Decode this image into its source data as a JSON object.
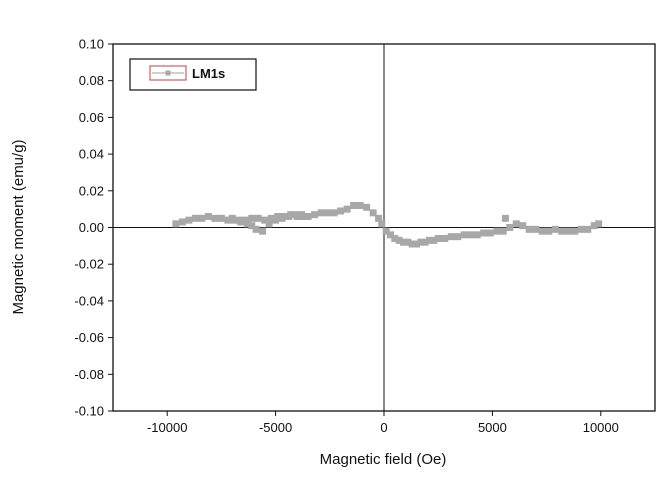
{
  "chart_data": {
    "type": "scatter",
    "title": "",
    "xlabel": "Magnetic field (Oe)",
    "ylabel": "Magnetic moment (emu/g)",
    "xlim": [
      -12500,
      12500
    ],
    "ylim": [
      -0.1,
      0.1
    ],
    "x_ticks": [
      -10000,
      -5000,
      0,
      5000,
      10000
    ],
    "x_tick_labels": [
      "-10000",
      "-5000",
      "0",
      "5000",
      "10000"
    ],
    "y_ticks": [
      -0.1,
      -0.08,
      -0.06,
      -0.04,
      -0.02,
      0.0,
      0.02,
      0.04,
      0.06,
      0.08,
      0.1
    ],
    "y_tick_labels": [
      "-0.10",
      "-0.08",
      "-0.06",
      "-0.04",
      "-0.02",
      "0.00",
      "0.02",
      "0.04",
      "0.06",
      "0.08",
      "0.10"
    ],
    "grid": false,
    "zero_lines": true,
    "legend_position": "top-left",
    "series": [
      {
        "name": "LM1s",
        "color": "#a8a8a8",
        "marker": "square",
        "x": [
          -9600,
          -9300,
          -9000,
          -8700,
          -8400,
          -8100,
          -7800,
          -7500,
          -7200,
          -6900,
          -6600,
          -6300,
          -6100,
          -5900,
          -5600,
          -5300,
          -5000,
          -4700,
          -4400,
          -4100,
          -3800,
          -3500,
          -3200,
          -2900,
          -2600,
          -2300,
          -2000,
          -1700,
          -1400,
          -1100,
          -800,
          -500,
          -250,
          -100,
          100,
          300,
          500,
          700,
          900,
          1100,
          1300,
          1500,
          1700,
          1900,
          2100,
          2300,
          2500,
          2800,
          3100,
          3400,
          3700,
          4000,
          4300,
          4600,
          4900,
          5200,
          5500,
          5600,
          5800,
          6100,
          6400,
          6700,
          7000,
          7300,
          7600,
          7900,
          8200,
          8500,
          8800,
          9100,
          9400,
          9700,
          9900,
          -7000,
          -6700,
          -6400,
          -6100,
          -5800,
          -5500,
          -5200,
          -4900,
          -4600,
          -4300,
          -4000,
          -3700
        ],
        "y": [
          0.002,
          0.003,
          0.004,
          0.005,
          0.005,
          0.006,
          0.005,
          0.005,
          0.004,
          0.004,
          0.003,
          0.002,
          0.001,
          -0.001,
          -0.002,
          0.002,
          0.004,
          0.005,
          0.006,
          0.007,
          0.007,
          0.006,
          0.007,
          0.008,
          0.008,
          0.008,
          0.009,
          0.01,
          0.012,
          0.012,
          0.011,
          0.008,
          0.005,
          0.002,
          -0.002,
          -0.004,
          -0.006,
          -0.007,
          -0.008,
          -0.008,
          -0.009,
          -0.009,
          -0.008,
          -0.008,
          -0.007,
          -0.007,
          -0.006,
          -0.006,
          -0.005,
          -0.005,
          -0.004,
          -0.004,
          -0.004,
          -0.003,
          -0.003,
          -0.002,
          -0.002,
          0.005,
          0.0,
          0.002,
          0.001,
          -0.001,
          -0.001,
          -0.002,
          -0.002,
          -0.001,
          -0.002,
          -0.002,
          -0.002,
          -0.001,
          -0.001,
          0.001,
          0.002,
          0.005,
          0.004,
          0.004,
          0.005,
          0.005,
          0.004,
          0.005,
          0.006,
          0.006,
          0.007,
          0.006,
          0.006
        ]
      }
    ]
  }
}
